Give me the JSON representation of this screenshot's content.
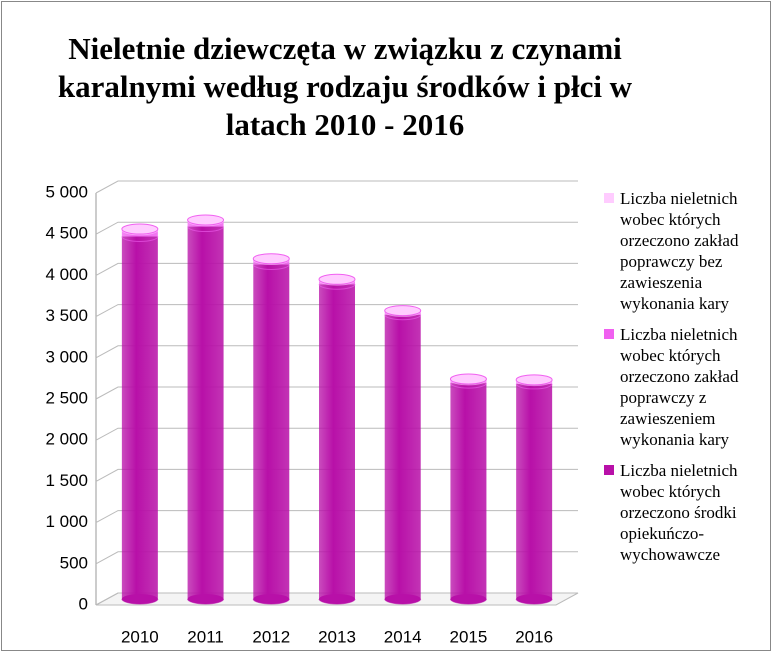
{
  "chart_data": {
    "type": "bar",
    "title": "Nieletnie dziewczęta w związku z czynami karalnymi według rodzaju środków i płci w latach 2010 - 2016",
    "categories": [
      "2010",
      "2011",
      "2012",
      "2013",
      "2014",
      "2015",
      "2016"
    ],
    "series": [
      {
        "name": "Liczba nieletnich wobec których orzeczono środki opiekuńczo-wychowawcze",
        "color": "#b810a8",
        "values": [
          4400,
          4520,
          4060,
          3820,
          3450,
          2620,
          2610
        ]
      },
      {
        "name": "Liczba nieletnich wobec których orzeczono zakład poprawczy z zawieszeniem wykonania kary",
        "color": "#f060f0",
        "values": [
          80,
          70,
          60,
          50,
          40,
          40,
          40
        ]
      },
      {
        "name": "Liczba nieletnich wobec których orzeczono zakład poprawczy bez zawieszenia wykonania kary",
        "color": "#ffccff",
        "values": [
          10,
          10,
          10,
          10,
          10,
          10,
          10
        ]
      }
    ],
    "stacked": true,
    "legend": "right",
    "ylim": [
      0,
      5000
    ],
    "yticks": [
      0,
      500,
      {
        "value": 1000,
        "label": "1 000"
      },
      {
        "value": 1500,
        "label": "1 500"
      },
      {
        "value": 2000,
        "label": "2 000"
      },
      {
        "value": 2500,
        "label": "2 500"
      },
      {
        "value": 3000,
        "label": "3 000"
      },
      {
        "value": 3500,
        "label": "3 500"
      },
      {
        "value": 4000,
        "label": "4 000"
      },
      {
        "value": 4500,
        "label": "4 500"
      },
      {
        "value": 5000,
        "label": "5 000"
      }
    ],
    "grid": true
  }
}
